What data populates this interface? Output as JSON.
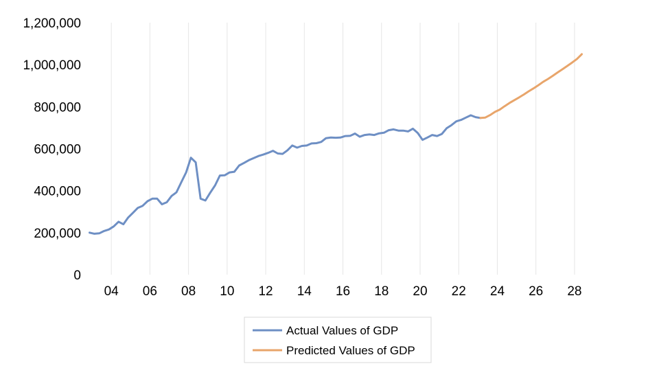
{
  "chart_data": {
    "type": "line",
    "title": "",
    "xlabel": "",
    "ylabel": "",
    "grid": "vertical",
    "legend_position": "bottom",
    "x_tick_labels": [
      "04",
      "06",
      "08",
      "10",
      "12",
      "14",
      "16",
      "18",
      "20",
      "22",
      "24",
      "26",
      "28"
    ],
    "x_tick_positions": [
      2004,
      2006,
      2008,
      2010,
      2012,
      2014,
      2016,
      2018,
      2020,
      2022,
      2024,
      2026,
      2028
    ],
    "xlim": [
      2002.75,
      2028.75
    ],
    "y_tick_labels": [
      "0",
      "200,000",
      "400,000",
      "600,000",
      "800,000",
      "1,000,000",
      "1,200,000"
    ],
    "y_tick_values": [
      0,
      200000,
      400000,
      600000,
      800000,
      1000000,
      1200000
    ],
    "ylim": [
      0,
      1200000
    ],
    "series": [
      {
        "name": "Actual Values of GDP",
        "color": "#6e8fc4",
        "x": [
          2002.875,
          2003.125,
          2003.375,
          2003.625,
          2003.875,
          2004.125,
          2004.375,
          2004.625,
          2004.875,
          2005.125,
          2005.375,
          2005.625,
          2005.875,
          2006.125,
          2006.375,
          2006.625,
          2006.875,
          2007.125,
          2007.375,
          2007.625,
          2007.875,
          2008.125,
          2008.375,
          2008.625,
          2008.875,
          2009.125,
          2009.375,
          2009.625,
          2009.875,
          2010.125,
          2010.375,
          2010.625,
          2010.875,
          2011.125,
          2011.375,
          2011.625,
          2011.875,
          2012.125,
          2012.375,
          2012.625,
          2012.875,
          2013.125,
          2013.375,
          2013.625,
          2013.875,
          2014.125,
          2014.375,
          2014.625,
          2014.875,
          2015.125,
          2015.375,
          2015.625,
          2015.875,
          2016.125,
          2016.375,
          2016.625,
          2016.875,
          2017.125,
          2017.375,
          2017.625,
          2017.875,
          2018.125,
          2018.375,
          2018.625,
          2018.875,
          2019.125,
          2019.375,
          2019.625,
          2019.875,
          2020.125,
          2020.375,
          2020.625,
          2020.875,
          2021.125,
          2021.375,
          2021.625,
          2021.875,
          2022.125,
          2022.375,
          2022.625,
          2022.875,
          2023.125
        ],
        "values": [
          200000,
          195000,
          197000,
          208000,
          215000,
          230000,
          252000,
          240000,
          272000,
          295000,
          318000,
          328000,
          350000,
          362000,
          362000,
          335000,
          345000,
          375000,
          392000,
          440000,
          487000,
          557000,
          535000,
          362000,
          353000,
          390000,
          425000,
          472000,
          473000,
          487000,
          490000,
          520000,
          532000,
          545000,
          555000,
          565000,
          572000,
          580000,
          590000,
          577000,
          575000,
          592000,
          615000,
          605000,
          613000,
          615000,
          625000,
          626000,
          632000,
          650000,
          653000,
          652000,
          653000,
          660000,
          661000,
          672000,
          657000,
          665000,
          668000,
          665000,
          673000,
          676000,
          688000,
          692000,
          686000,
          686000,
          682000,
          695000,
          675000,
          642000,
          653000,
          665000,
          660000,
          670000,
          697000,
          712000,
          730000,
          737000,
          748000,
          759000,
          750000,
          746000
        ]
      },
      {
        "name": "Predicted Values of GDP",
        "color": "#e8a56b",
        "x": [
          2023.125,
          2023.375,
          2023.625,
          2023.875,
          2024.125,
          2024.375,
          2024.625,
          2024.875,
          2025.125,
          2025.375,
          2025.625,
          2025.875,
          2026.125,
          2026.375,
          2026.625,
          2026.875,
          2027.125,
          2027.375,
          2027.625,
          2027.875,
          2028.125,
          2028.375
        ],
        "values": [
          746000,
          748000,
          760000,
          775000,
          786000,
          802000,
          817000,
          831000,
          844000,
          858000,
          873000,
          887000,
          902000,
          918000,
          932000,
          947000,
          963000,
          978000,
          994000,
          1010000,
          1027000,
          1050000
        ]
      }
    ]
  }
}
